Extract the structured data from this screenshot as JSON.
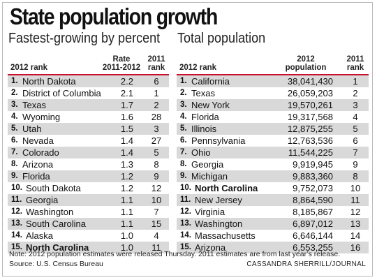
{
  "title": "State population growth",
  "left": {
    "subtitle": "Fastest-growing by percent",
    "headers": {
      "rank": "2012 rank",
      "rate": "Rate\n2011-2012",
      "prev": "2011\nrank"
    },
    "rows": [
      {
        "num": "1.",
        "name": "North Dakota",
        "value": "2.2",
        "prev": "6"
      },
      {
        "num": "2.",
        "name": "District of Columbia",
        "value": "2.1",
        "prev": "1"
      },
      {
        "num": "3.",
        "name": "Texas",
        "value": "1.7",
        "prev": "2"
      },
      {
        "num": "4.",
        "name": "Wyoming",
        "value": "1.6",
        "prev": "28"
      },
      {
        "num": "5.",
        "name": "Utah",
        "value": "1.5",
        "prev": "3"
      },
      {
        "num": "6.",
        "name": "Nevada",
        "value": "1.4",
        "prev": "27"
      },
      {
        "num": "7.",
        "name": "Colorado",
        "value": "1.4",
        "prev": "5"
      },
      {
        "num": "8.",
        "name": "Arizona",
        "value": "1.3",
        "prev": "8"
      },
      {
        "num": "9.",
        "name": "Florida",
        "value": "1.2",
        "prev": "9"
      },
      {
        "num": "10.",
        "name": "South Dakota",
        "value": "1.2",
        "prev": "12"
      },
      {
        "num": "11.",
        "name": "Georgia",
        "value": "1.1",
        "prev": "10"
      },
      {
        "num": "12.",
        "name": "Washington",
        "value": "1.1",
        "prev": "7"
      },
      {
        "num": "13.",
        "name": "South Carolina",
        "value": "1.1",
        "prev": "15"
      },
      {
        "num": "14.",
        "name": "Alaska",
        "value": "1.0",
        "prev": "4"
      },
      {
        "num": "15.",
        "name": "North Carolina",
        "value": "1.0",
        "prev": "11",
        "highlight": true
      }
    ]
  },
  "right": {
    "subtitle": "Total population",
    "headers": {
      "rank": "2012 rank",
      "pop": "2012\npopulation",
      "prev": "2011\nrank"
    },
    "rows": [
      {
        "num": "1.",
        "name": "California",
        "value": "38,041,430",
        "prev": "1"
      },
      {
        "num": "2.",
        "name": "Texas",
        "value": "26,059,203",
        "prev": "2"
      },
      {
        "num": "3.",
        "name": "New York",
        "value": "19,570,261",
        "prev": "3"
      },
      {
        "num": "4.",
        "name": "Florida",
        "value": "19,317,568",
        "prev": "4"
      },
      {
        "num": "5.",
        "name": "Illinois",
        "value": "12,875,255",
        "prev": "5"
      },
      {
        "num": "6.",
        "name": "Pennsylvania",
        "value": "12,763,536",
        "prev": "6"
      },
      {
        "num": "7.",
        "name": "Ohio",
        "value": "11,544,225",
        "prev": "7"
      },
      {
        "num": "8.",
        "name": "Georgia",
        "value": "9,919,945",
        "prev": "9"
      },
      {
        "num": "9.",
        "name": "Michigan",
        "value": "9,883,360",
        "prev": "8"
      },
      {
        "num": "10.",
        "name": "North Carolina",
        "value": "9,752,073",
        "prev": "10",
        "highlight": true
      },
      {
        "num": "11.",
        "name": "New Jersey",
        "value": "8,864,590",
        "prev": "11"
      },
      {
        "num": "12.",
        "name": "Virginia",
        "value": "8,185,867",
        "prev": "12"
      },
      {
        "num": "13.",
        "name": "Washington",
        "value": "6,897,012",
        "prev": "13"
      },
      {
        "num": "14.",
        "name": "Massachusetts",
        "value": "6,646,144",
        "prev": "14"
      },
      {
        "num": "15.",
        "name": "Arizona",
        "value": "6,553,255",
        "prev": "16"
      }
    ]
  },
  "footer": {
    "note": "Note: 2012 population estimates were released Thursday.  2011 estimates are from last year’s release.",
    "source": "Source: U.S. Census Bureau",
    "credit": "CASSANDRA SHERRILL/JOURNAL"
  },
  "colors": {
    "rule": "#c8102e",
    "shade": "#d9d9d9"
  }
}
